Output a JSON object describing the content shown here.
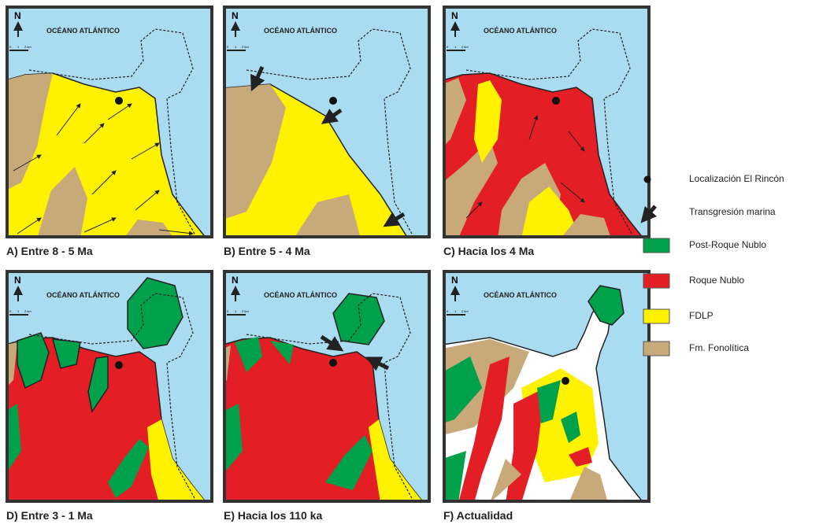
{
  "panels": [
    {
      "caption": "A) Entre 8 - 5 Ma",
      "north": "N",
      "ocean_label": "OCÉANO ATLÁNTICO",
      "scale_labels": [
        "0",
        "1",
        "2 km"
      ]
    },
    {
      "caption": "B) Entre 5 - 4 Ma",
      "north": "N",
      "ocean_label": "OCÉANO ATLÁNTICO",
      "scale_labels": [
        "0",
        "1",
        "2 km"
      ]
    },
    {
      "caption": "C) Hacia los 4 Ma",
      "north": "N",
      "ocean_label": "OCÉANO ATLÁNTICO",
      "scale_labels": [
        "0",
        "1",
        "2 km"
      ]
    },
    {
      "caption": "D) Entre 3 - 1 Ma",
      "north": "N",
      "ocean_label": "OCÉANO ATLÁNTICO",
      "scale_labels": [
        "0",
        "1",
        "2 km"
      ]
    },
    {
      "caption": "E) Hacia los 110 ka",
      "north": "N",
      "ocean_label": "OCÉANO ATLÁNTICO",
      "scale_labels": [
        "0",
        "1",
        "2 km"
      ]
    },
    {
      "caption": "F) Actualidad",
      "north": "N",
      "ocean_label": "OCÉANO ATLÁNTICO",
      "scale_labels": [
        "0",
        "1",
        "2 km"
      ]
    }
  ],
  "legend": [
    {
      "label": "Localización El Rincón"
    },
    {
      "label": "Transgresión marina"
    },
    {
      "label": "Post-Roque Nublo"
    },
    {
      "label": "Roque Nublo"
    },
    {
      "label": "FDLP"
    },
    {
      "label": "Fm. Fonolítica"
    }
  ]
}
